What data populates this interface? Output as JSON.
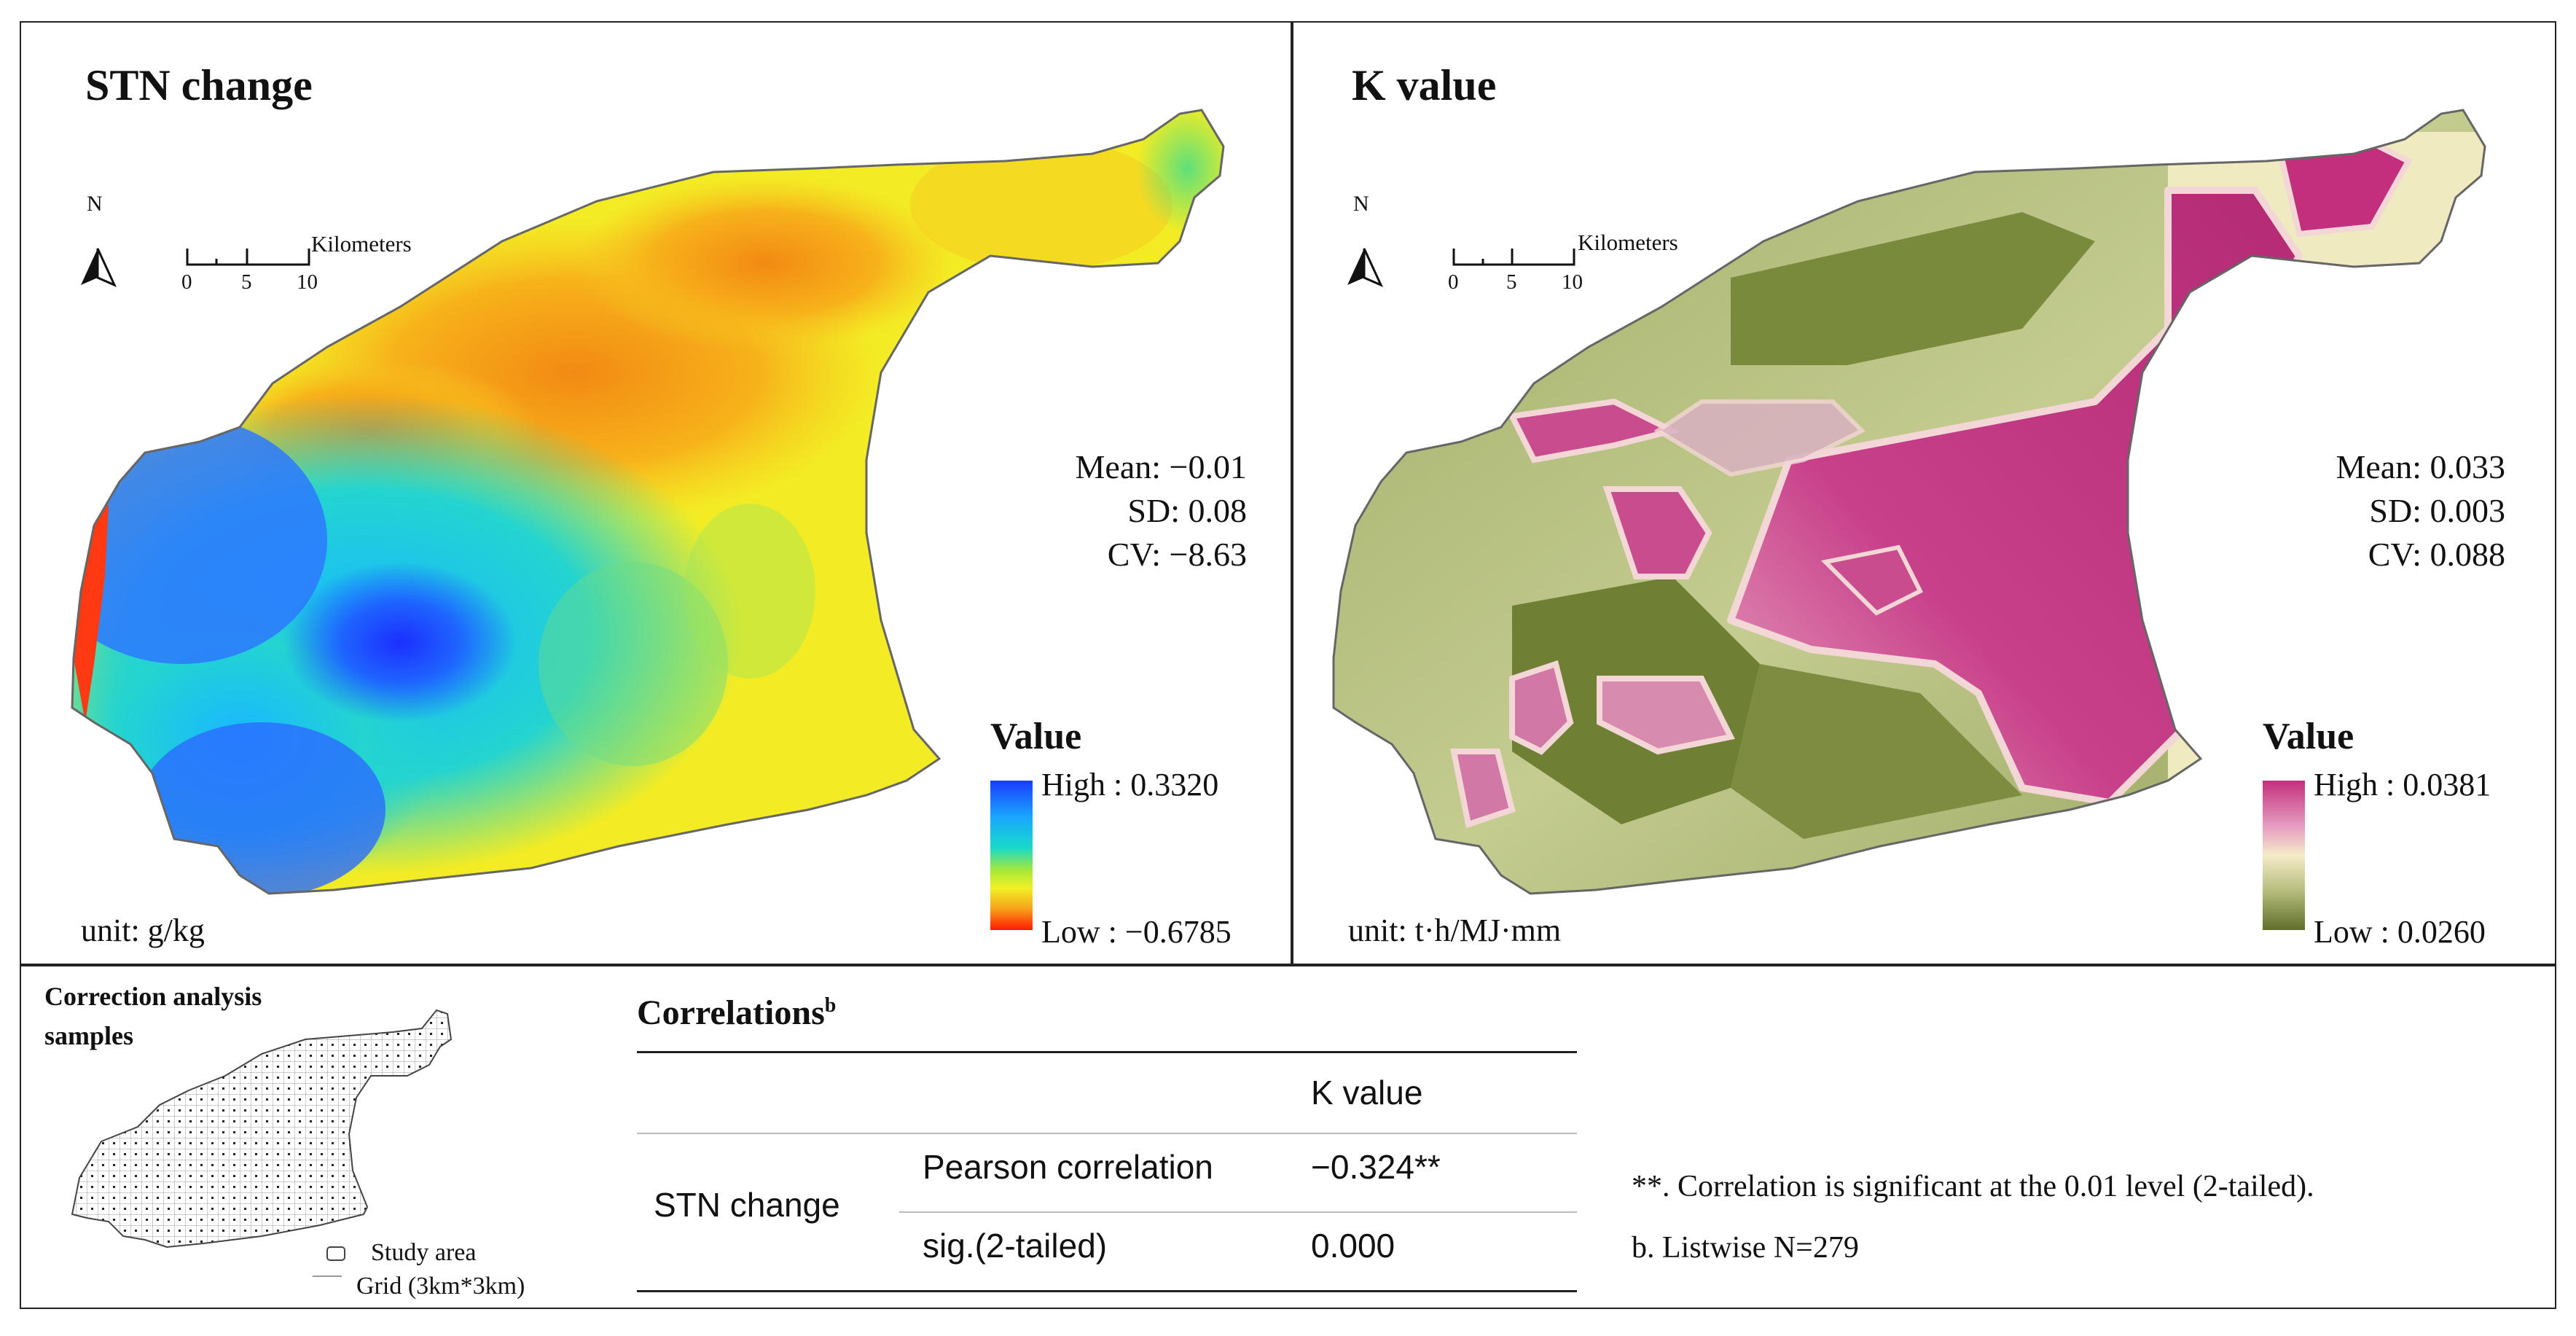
{
  "stn_panel": {
    "title": "STN change",
    "north": "N",
    "scale": {
      "ticks": [
        "0",
        "5",
        "10"
      ],
      "unit": "Kilometers"
    },
    "stats": {
      "mean": "Mean: −0.01",
      "sd": "SD:  0.08",
      "cv": "CV: −8.63"
    },
    "legend": {
      "title": "Value",
      "high": "High : 0.3320",
      "low": "Low : −0.6785"
    },
    "unit": "unit: g/kg",
    "colors": {
      "high": "#1a3cff",
      "mid": "#19d9c8",
      "yellowish": "#f2ef25",
      "low": "#ff1a00"
    }
  },
  "k_panel": {
    "title": "K value",
    "north": "N",
    "scale": {
      "ticks": [
        "0",
        "5",
        "10"
      ],
      "unit": "Kilometers"
    },
    "stats": {
      "mean": "Mean: 0.033",
      "sd": "SD: 0.003",
      "cv": "CV: 0.088"
    },
    "legend": {
      "title": "Value",
      "high": "High : 0.0381",
      "low": "Low : 0.0260"
    },
    "unit": "unit: t·h/MJ·mm",
    "colors": {
      "high": "#c2307d",
      "mid": "#f4ecc9",
      "low": "#5f6e2a"
    }
  },
  "samples": {
    "title_line1": "Correction analysis",
    "title_line2": "samples",
    "legend_study_area": "Study area",
    "legend_grid": "Grid (3km*3km)"
  },
  "correlations": {
    "title": "Correlations",
    "title_sup": "b",
    "column_header": "K value",
    "row_label": "STN change",
    "rows": [
      {
        "label": "Pearson correlation",
        "value": "−0.324**"
      },
      {
        "label": "sig.(2-tailed)",
        "value": "0.000"
      }
    ],
    "notes": [
      "**. Correlation is significant at the 0.01 level (2-tailed).",
      "b. Listwise N=279"
    ]
  }
}
